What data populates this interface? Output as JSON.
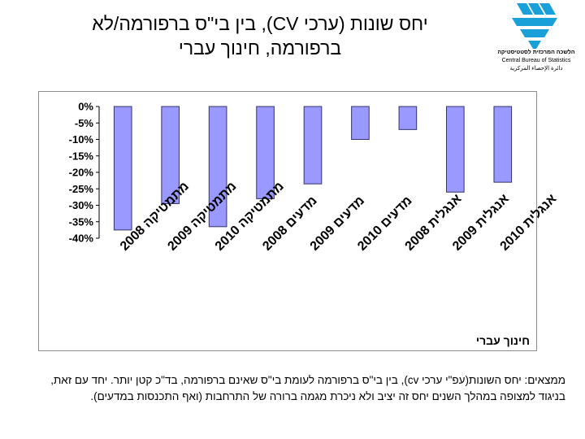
{
  "header": {
    "title_line1": "יחס שונות (ערכי CV), בין בי\"ס ברפורמה/לא",
    "title_line2": "ברפורמה, חינוך עברי"
  },
  "logo": {
    "line1": "הלשכה המרכזית לסטטיסטיקה",
    "line2": "Central Bureau of Statistics",
    "line3": "دائرة الإحصاء المركزية",
    "color": "#1aa0d8"
  },
  "chart_data": {
    "type": "bar",
    "categories": [
      "מתמטיקה 2008",
      "מתמטיקה 2009",
      "מתמטיקה 2010",
      "מדעים 2008",
      "מדעים 2009",
      "מדעים 2010",
      "אנגלית 2008",
      "אנגלית 2009",
      "אנגלית 2010"
    ],
    "groups": [
      "מתמטיקה",
      "מדעים",
      "אנגלית"
    ],
    "values": [
      -37.5,
      -29.5,
      -36.5,
      -28,
      -23.5,
      -10,
      -7,
      -26,
      -23
    ],
    "ylim": [
      -40,
      0
    ],
    "yticks": [
      "0%",
      "-5%",
      "-10%",
      "-15%",
      "-20%",
      "-25%",
      "-30%",
      "-35%",
      "-40%"
    ],
    "ytick_values": [
      0,
      -5,
      -10,
      -15,
      -20,
      -25,
      -30,
      -35,
      -40
    ],
    "corner_label": "חינוך עברי",
    "colors": {
      "bar_fill": "#9999ff",
      "bar_stroke": "#33336b",
      "axis": "#000000"
    }
  },
  "findings": {
    "text": "ממצאים: יחס השונות(עפ\"י ערכי cv), בין בי\"ס ברפורמה לעומת בי\"ס שאינם ברפורמה, בד\"כ קטן יותר. יחד עם זאת, בניגוד למצופה במהלך השנים יחס זה יציב ולא ניכרת מגמה ברורה של התרחבות (ואף התכנסות במדעים)."
  }
}
